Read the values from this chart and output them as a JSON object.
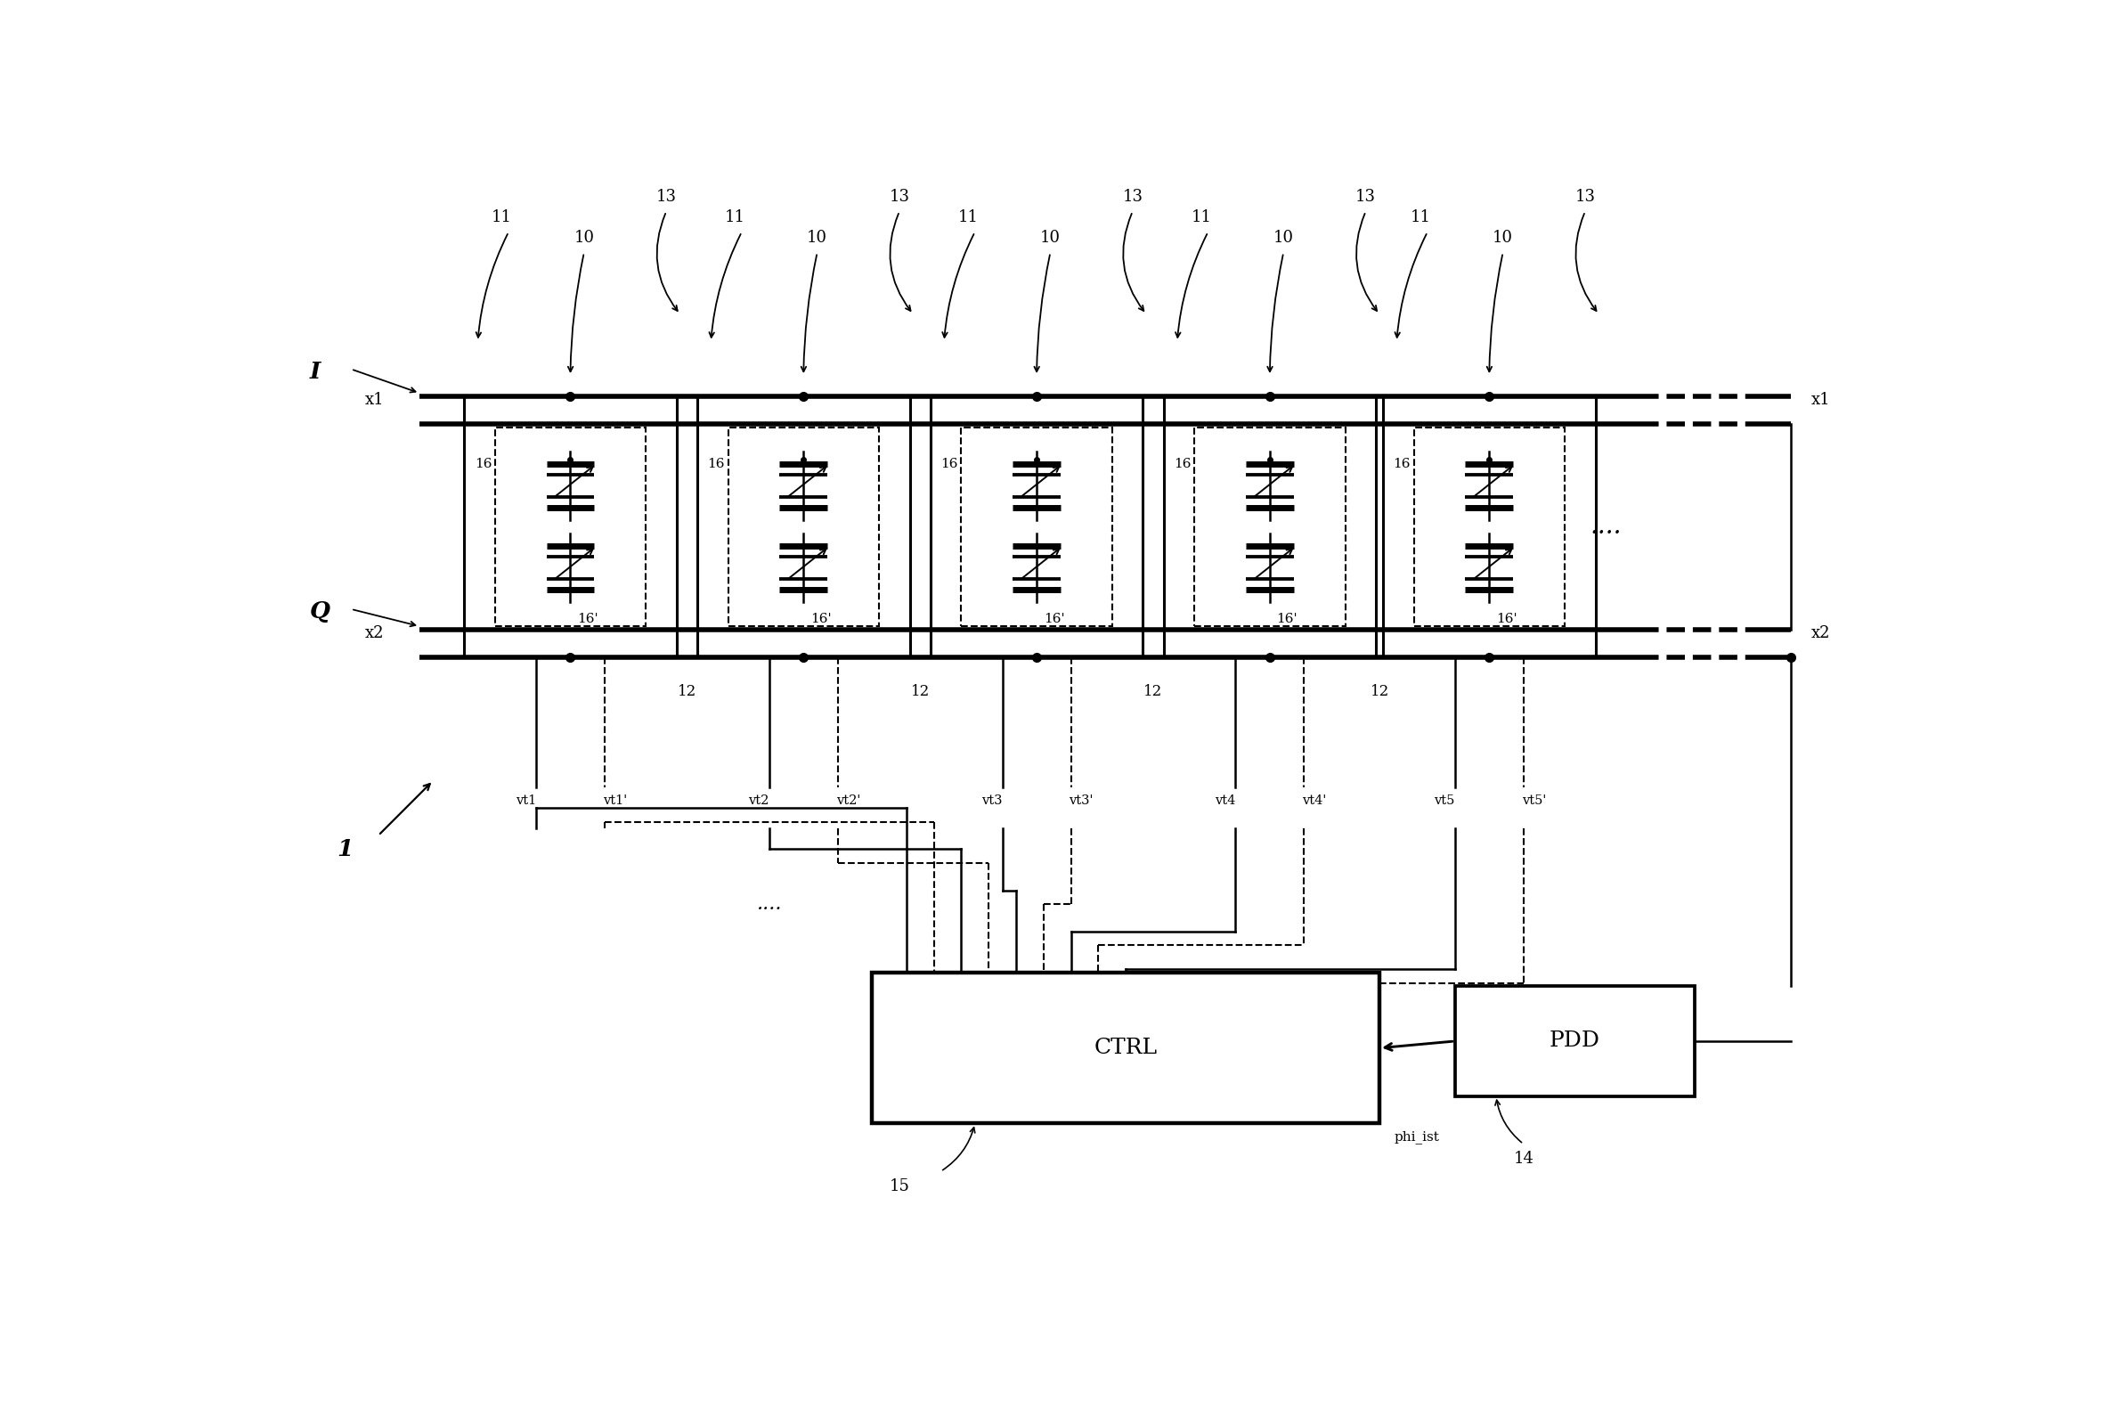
{
  "bg_color": "#ffffff",
  "fig_width": 23.66,
  "fig_height": 15.73,
  "num_cells": 5,
  "cell_label_16": "16",
  "cell_label_16p": "16'",
  "bus_I_label": "I",
  "bus_x1_label": "x1",
  "bus_Q_label": "Q",
  "bus_x2_label": "x2",
  "vt_labels": [
    "vt1",
    "vt1'",
    "vt2",
    "vt2'",
    "vt3",
    "vt3'",
    "vt4",
    "vt4'",
    "vt5",
    "vt5'"
  ],
  "ctrl_label": "CTRL",
  "pdd_label": "PDD",
  "label_14": "14",
  "label_15": "15",
  "label_1": "1",
  "phi_label": "phi_ist",
  "label_10": "10",
  "label_11": "11",
  "label_12": "12",
  "label_13": "13"
}
